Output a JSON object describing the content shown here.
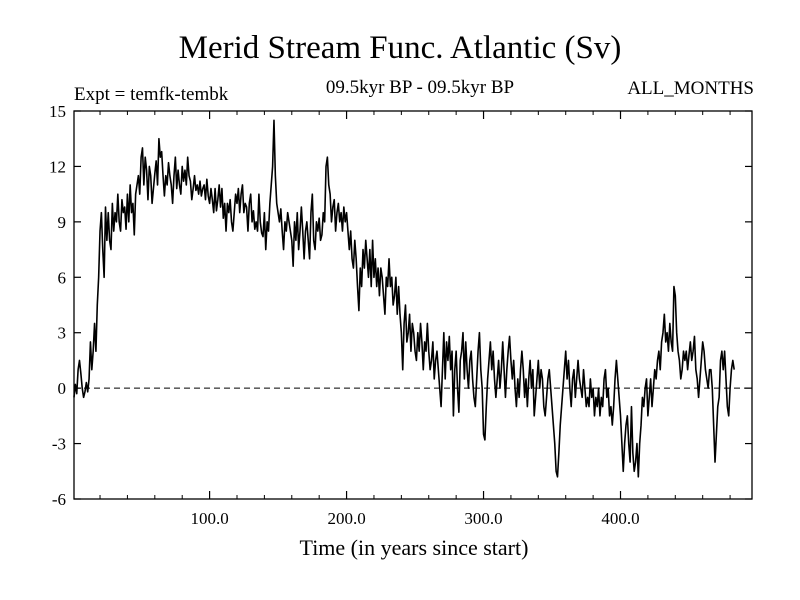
{
  "chart_data": {
    "type": "line",
    "title": "Merid Stream Func. Atlantic (Sv)",
    "expt_label": "Expt = temfk-tembk",
    "period_label": "09.5kyr BP - 09.5kyr BP",
    "months_label": "ALL_MONTHS",
    "xlabel": "Time (in years since start)",
    "ylabel": "",
    "xlim": [
      1,
      496
    ],
    "ylim": [
      -6,
      15
    ],
    "x_ticks": [
      100,
      200,
      300,
      400
    ],
    "x_tick_labels": [
      "100.0",
      "200.0",
      "300.0",
      "400.0"
    ],
    "y_ticks": [
      -6,
      -3,
      0,
      3,
      6,
      9,
      12,
      15
    ],
    "y_tick_labels": [
      "-6",
      "-3",
      "0",
      "3",
      "6",
      "9",
      "12",
      "15"
    ],
    "zero_line": 0,
    "series": [
      {
        "name": "Merid Stream Func. Atlantic",
        "x_start": 1,
        "x_step": 1,
        "values": [
          -0.5,
          0.2,
          -0.3,
          1.0,
          1.5,
          0.8,
          0.0,
          -0.5,
          -0.2,
          0.3,
          -0.2,
          0.5,
          2.5,
          1.0,
          2.0,
          3.5,
          2.0,
          4.5,
          6.0,
          8.5,
          9.5,
          7.5,
          6.0,
          9.8,
          8.0,
          9.5,
          8.0,
          7.5,
          10.0,
          8.5,
          9.5,
          9.0,
          10.5,
          9.0,
          8.5,
          10.2,
          9.5,
          9.8,
          8.6,
          10.5,
          9.0,
          11.0,
          9.5,
          10.0,
          8.3,
          10.5,
          11.0,
          11.5,
          10.5,
          12.5,
          13.0,
          11.0,
          12.5,
          11.8,
          10.2,
          12.0,
          11.5,
          10.0,
          10.8,
          11.6,
          12.3,
          11.0,
          13.5,
          12.5,
          12.8,
          11.5,
          10.4,
          11.5,
          11.0,
          12.2,
          11.5,
          11.0,
          10.0,
          11.5,
          12.5,
          10.8,
          11.8,
          11.0,
          10.5,
          12.0,
          11.2,
          11.8,
          11.0,
          12.5,
          11.5,
          11.2,
          10.2,
          10.8,
          11.5,
          10.7,
          11.0,
          10.5,
          11.2,
          10.4,
          10.8,
          11.0,
          10.2,
          11.3,
          10.4,
          10.0,
          10.8,
          10.2,
          9.5,
          10.8,
          9.6,
          10.2,
          11.0,
          9.8,
          10.8,
          9.2,
          10.0,
          8.5,
          10.0,
          9.5,
          10.2,
          9.0,
          8.5,
          9.5,
          10.5,
          10.0,
          10.8,
          9.5,
          10.5,
          11.0,
          9.5,
          10.0,
          9.8,
          8.5,
          10.0,
          10.5,
          9.0,
          9.6,
          8.6,
          9.0,
          8.5,
          10.5,
          9.0,
          8.4,
          8.2,
          9.5,
          7.5,
          9.0,
          8.5,
          10.0,
          11.0,
          12.0,
          14.5,
          11.5,
          10.0,
          9.5,
          9.0,
          9.7,
          8.5,
          7.5,
          9.0,
          8.5,
          9.5,
          9.0,
          8.5,
          8.0,
          6.6,
          9.0,
          8.0,
          9.5,
          7.5,
          8.5,
          9.8,
          8.5,
          7.0,
          8.5,
          9.0,
          8.0,
          7.0,
          9.5,
          10.5,
          8.0,
          7.5,
          9.0,
          8.5,
          9.2,
          8.0,
          8.3,
          9.5,
          9.0,
          12.0,
          12.5,
          11.0,
          10.5,
          9.0,
          9.8,
          10.2,
          8.5,
          9.5,
          10.0,
          9.0,
          9.5,
          8.5,
          9.8,
          9.0,
          9.5,
          8.5,
          7.5,
          8.5,
          7.0,
          6.5,
          8.0,
          7.0,
          5.5,
          4.2,
          6.5,
          5.5,
          7.5,
          6.5,
          8.0,
          7.0,
          6.0,
          7.5,
          5.5,
          8.0,
          6.0,
          7.0,
          5.5,
          6.5,
          5.0,
          6.5,
          6.0,
          5.0,
          4.0,
          6.0,
          5.5,
          7.0,
          5.5,
          6.0,
          4.5,
          5.0,
          6.0,
          4.0,
          5.5,
          4.0,
          3.0,
          1.0,
          3.5,
          4.5,
          2.5,
          3.0,
          4.0,
          2.0,
          3.5,
          3.0,
          2.0,
          1.5,
          3.0,
          2.0,
          3.5,
          2.5,
          1.0,
          2.5,
          2.0,
          3.5,
          2.0,
          1.0,
          1.5,
          2.5,
          0.5,
          1.5,
          2.0,
          1.0,
          0.0,
          -1.0,
          1.0,
          3.0,
          0.5,
          2.5,
          1.5,
          2.8,
          1.0,
          2.0,
          -1.5,
          1.0,
          2.0,
          0.0,
          -1.3,
          1.5,
          2.0,
          3.0,
          0.5,
          2.5,
          1.0,
          0.0,
          1.5,
          2.0,
          0.5,
          -0.5,
          -1.0,
          0.5,
          2.0,
          3.0,
          1.0,
          0.0,
          -2.5,
          -2.8,
          -1.0,
          0.5,
          1.5,
          2.5,
          1.0,
          2.0,
          0.5,
          -0.5,
          0.5,
          1.5,
          0.0,
          1.0,
          2.5,
          1.0,
          -0.5,
          1.0,
          2.0,
          2.8,
          1.5,
          0.5,
          1.5,
          0.0,
          -1.0,
          0.5,
          -0.5,
          1.0,
          2.0,
          1.0,
          -0.5,
          0.5,
          -1.0,
          0.5,
          1.5,
          0.0,
          1.0,
          -1.5,
          -0.5,
          0.5,
          1.5,
          0.0,
          1.0,
          0.5,
          -1.0,
          -1.5,
          -0.5,
          0.5,
          1.0,
          0.0,
          -1.0,
          -2.0,
          -3.0,
          -4.5,
          -4.8,
          -3.5,
          -2.0,
          -1.0,
          0.0,
          1.0,
          2.0,
          0.5,
          1.5,
          0.0,
          -1.0,
          0.5,
          1.0,
          -0.5,
          0.5,
          1.5,
          0.5,
          0.0,
          -0.5,
          1.0,
          0.0,
          -1.0,
          -0.5,
          -1.0,
          0.5,
          -0.5,
          0.0,
          -1.5,
          -0.5,
          -1.0,
          0.0,
          -1.5,
          -0.5,
          -1.0,
          0.5,
          1.0,
          -0.5,
          0.0,
          -1.5,
          -1.0,
          -2.0,
          -1.0,
          0.5,
          1.5,
          0.5,
          -0.5,
          -1.5,
          -3.0,
          -4.5,
          -3.0,
          -2.0,
          -1.5,
          -3.0,
          -4.0,
          -1.0,
          -3.5,
          -4.5,
          -4.0,
          -3.0,
          -4.8,
          -3.0,
          -2.0,
          -0.5,
          -1.0,
          0.0,
          0.5,
          -1.5,
          -0.5,
          0.5,
          -1.0,
          0.0,
          1.0,
          0.5,
          1.5,
          2.0,
          1.0,
          2.5,
          3.0,
          4.0,
          2.5,
          3.0,
          2.0,
          3.5,
          2.5,
          2.0,
          5.5,
          5.0,
          3.0,
          2.0,
          1.5,
          0.5,
          1.0,
          2.0,
          1.5,
          2.0,
          1.0,
          1.8,
          2.5,
          1.5,
          2.0,
          2.8,
          1.0,
          0.5,
          -0.5,
          0.5,
          1.5,
          2.5,
          2.0,
          1.0,
          0.5,
          0.0,
          1.0,
          1.0,
          0.0,
          -2.0,
          -4.0,
          -2.5,
          -1.0,
          -0.5,
          1.5,
          2.0,
          1.0,
          2.0,
          0.5,
          -1.0,
          -1.5,
          0.0,
          1.0,
          1.5,
          1.0
        ]
      }
    ]
  }
}
